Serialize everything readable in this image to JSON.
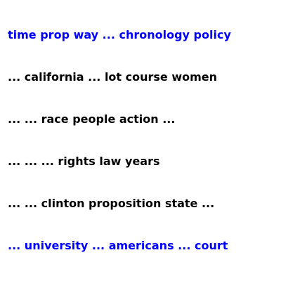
{
  "colors": {
    "highlight": "#0000ff",
    "default": "#000000",
    "background": "#ffffff"
  },
  "lines": [
    {
      "text": "time prop way ... chronology policy",
      "highlighted": true
    },
    {
      "text": "... california ... lot course women",
      "highlighted": false
    },
    {
      "text": "... ... race people action ...",
      "highlighted": false
    },
    {
      "text": "... ... ... rights law years",
      "highlighted": false
    },
    {
      "text": "... ... clinton proposition state ...",
      "highlighted": false
    },
    {
      "text": "... university ... americans ... court",
      "highlighted": true
    }
  ]
}
